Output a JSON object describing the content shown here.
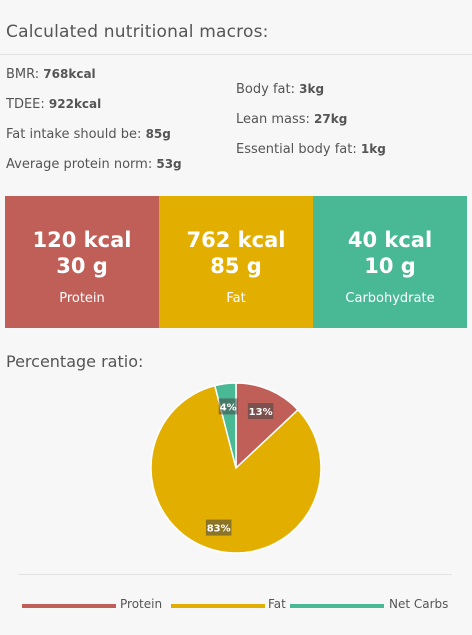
{
  "header": {
    "title": "Calculated nutritional macros:"
  },
  "stats_left": [
    {
      "label": "BMR:",
      "value": "768kcal"
    },
    {
      "label": "TDEE:",
      "value": "922kcal"
    },
    {
      "label": "Fat intake should be:",
      "value": "85g"
    },
    {
      "label": "Average protein norm:",
      "value": "53g"
    }
  ],
  "stats_right": [
    {
      "label": "Body fat:",
      "value": "3kg"
    },
    {
      "label": "Lean mass:",
      "value": "27kg"
    },
    {
      "label": "Essential body fat:",
      "value": "1kg"
    }
  ],
  "macros": [
    {
      "kcal": "120 kcal",
      "grams": "30 g",
      "label": "Protein",
      "color": "#bf5f57"
    },
    {
      "kcal": "762 kcal",
      "grams": "85 g",
      "label": "Fat",
      "color": "#e2ae00"
    },
    {
      "kcal": "40 kcal",
      "grams": "10 g",
      "label": "Carbohydrate",
      "color": "#49b895"
    }
  ],
  "percentage": {
    "title": "Percentage ratio:"
  },
  "chart_data": {
    "type": "pie",
    "title": "",
    "series": [
      {
        "name": "Protein",
        "value": 13,
        "label": "13%",
        "color": "#bf5f57"
      },
      {
        "name": "Fat",
        "value": 83,
        "label": "83%",
        "color": "#e2ae00"
      },
      {
        "name": "Net Carbs",
        "value": 4,
        "label": "4%",
        "color": "#49b895"
      }
    ],
    "legend": "bottom"
  }
}
